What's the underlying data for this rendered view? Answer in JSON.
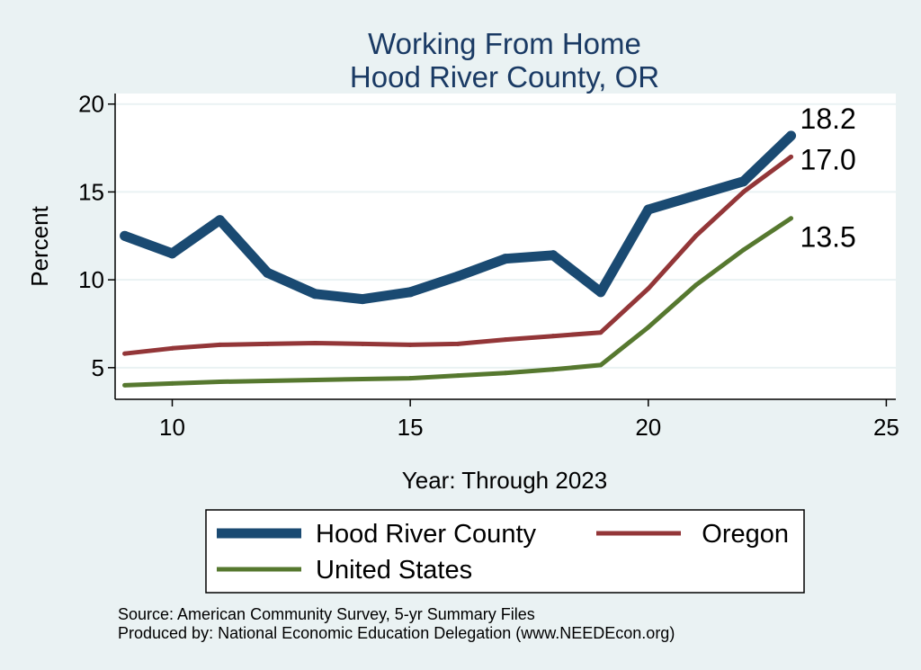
{
  "chart_data": {
    "type": "line",
    "title": [
      "Working From Home",
      "Hood River County, OR"
    ],
    "xlabel": "Year: Through 2023",
    "ylabel": "Percent",
    "xlim": [
      8.8,
      25.2
    ],
    "ylim": [
      3.2,
      20.6
    ],
    "xticks": [
      10,
      15,
      20,
      25
    ],
    "yticks": [
      5,
      10,
      15,
      20
    ],
    "grid": true,
    "legend_position": "bottom",
    "series": [
      {
        "name": "Hood River County",
        "color": "#1a4a72",
        "width": 11,
        "end_label": "18.2",
        "x": [
          9,
          10,
          11,
          12,
          13,
          14,
          15,
          16,
          17,
          18,
          19,
          20,
          21,
          22,
          23
        ],
        "y": [
          12.5,
          11.5,
          13.4,
          10.4,
          9.2,
          8.9,
          9.3,
          10.2,
          11.2,
          11.4,
          9.3,
          14.0,
          14.8,
          15.6,
          18.2
        ]
      },
      {
        "name": "Oregon",
        "color": "#933638",
        "width": 5,
        "end_label": "17.0",
        "x": [
          9,
          10,
          11,
          12,
          13,
          14,
          15,
          16,
          17,
          18,
          19,
          20,
          21,
          22,
          23
        ],
        "y": [
          5.8,
          6.1,
          6.3,
          6.35,
          6.4,
          6.35,
          6.3,
          6.35,
          6.6,
          6.8,
          7.0,
          9.5,
          12.5,
          15.0,
          17.0
        ]
      },
      {
        "name": "United States",
        "color": "#56782f",
        "width": 5,
        "end_label": "13.5",
        "x": [
          9,
          10,
          11,
          12,
          13,
          14,
          15,
          16,
          17,
          18,
          19,
          20,
          21,
          22,
          23
        ],
        "y": [
          4.0,
          4.1,
          4.2,
          4.25,
          4.3,
          4.35,
          4.4,
          4.55,
          4.7,
          4.9,
          5.15,
          7.3,
          9.7,
          11.7,
          13.5
        ]
      }
    ]
  },
  "notes": {
    "source": "Source: American Community Survey, 5-yr Summary Files",
    "produced": "Produced by: National Economic Education Delegation (www.NEEDEcon.org)"
  }
}
